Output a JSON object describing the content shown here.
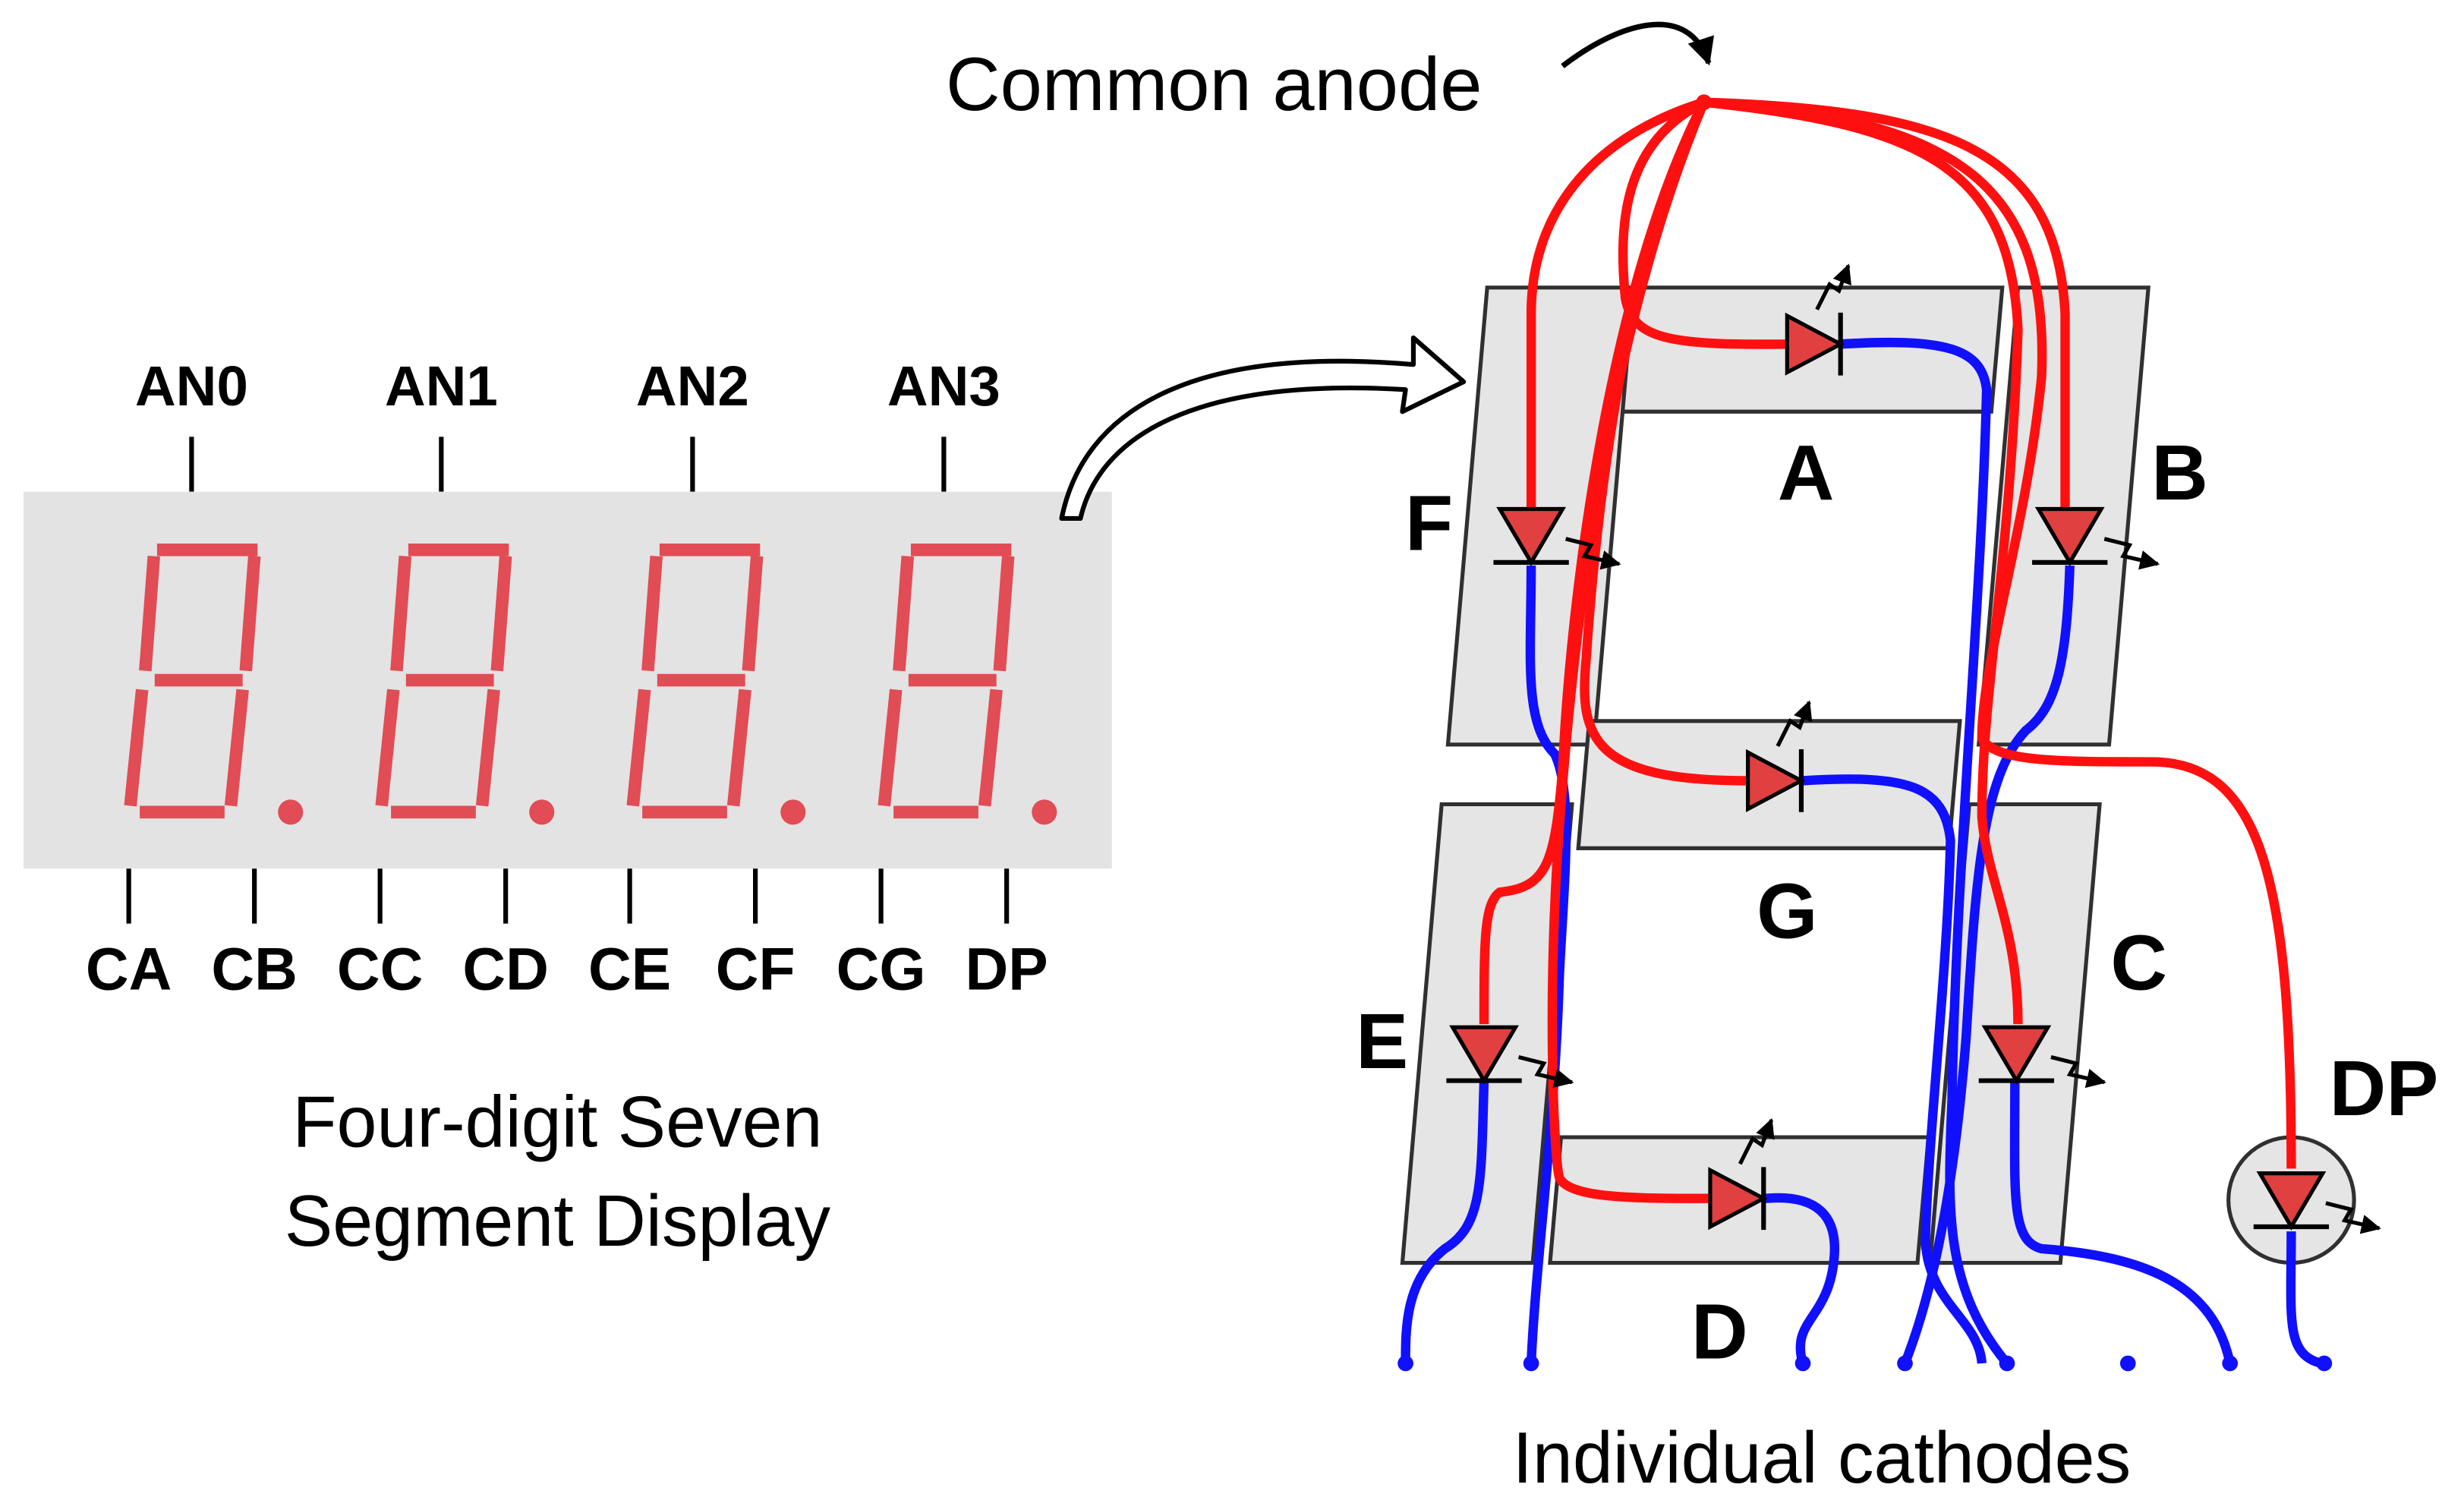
{
  "colors": {
    "segment": "#e14c55",
    "module_bg": "#e3e3e3",
    "anode_wire": "#ff1010",
    "cathode_wire": "#1010ff",
    "panel": "#e5e5e5",
    "led_fill": "#e04040"
  },
  "module": {
    "anode_labels": [
      "AN0",
      "AN1",
      "AN2",
      "AN3"
    ],
    "cathode_labels": [
      "CA",
      "CB",
      "CC",
      "CD",
      "CE",
      "CF",
      "CG",
      "DP"
    ],
    "caption_line1": "Four-digit Seven",
    "caption_line2": "Segment Display"
  },
  "schematic": {
    "common_anode_label": "Common anode",
    "segments": {
      "a": "A",
      "b": "B",
      "c": "C",
      "d": "D",
      "e": "E",
      "f": "F",
      "g": "G",
      "dp": "DP"
    },
    "cathodes_label": "Individual cathodes"
  }
}
